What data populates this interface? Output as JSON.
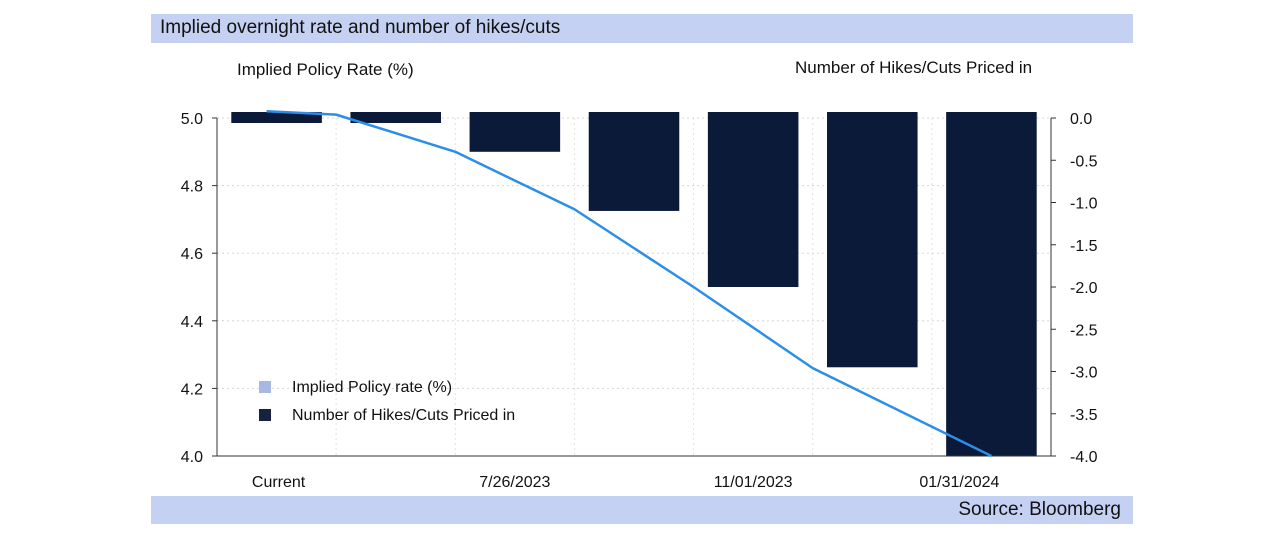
{
  "header": {
    "title": "Implied overnight rate and number of hikes/cuts"
  },
  "footer": {
    "source": "Source: Bloomberg"
  },
  "chart_data": {
    "type": "bar+line",
    "title": "Implied overnight rate and number of hikes/cuts",
    "left_axis_label": "Implied Policy Rate (%)",
    "right_axis_label": "Number of Hikes/Cuts Priced in",
    "categories": [
      "Current",
      "",
      "7/26/2023",
      "",
      "11/01/2023",
      "",
      "01/31/2024"
    ],
    "x_tick_labels": [
      "Current",
      "7/26/2023",
      "11/01/2023",
      "01/31/2024"
    ],
    "left_ylim": [
      4.0,
      5.0
    ],
    "left_ticks": [
      "5.0",
      "4.8",
      "4.6",
      "4.4",
      "4.2",
      "4.0"
    ],
    "right_ylim": [
      -4.0,
      0.0
    ],
    "right_ticks": [
      "0.0",
      "-0.5",
      "-1.0",
      "-1.5",
      "-2.0",
      "-2.5",
      "-3.0",
      "-3.5",
      "-4.0"
    ],
    "grid": true,
    "legend_position": "bottom-left",
    "series": [
      {
        "name": "Implied Policy rate (%)",
        "type": "line",
        "axis": "left",
        "color": "#2b8ee8",
        "values": [
          5.02,
          5.01,
          4.9,
          4.73,
          4.5,
          4.26,
          4.0
        ]
      },
      {
        "name": "Number of Hikes/Cuts Priced in",
        "type": "bar",
        "axis": "right",
        "color": "#0c1a3a",
        "values": [
          0.0,
          0.0,
          -0.4,
          -1.1,
          -2.0,
          -2.95,
          -4.0
        ]
      }
    ],
    "legend": [
      {
        "label": "Implied Policy rate (%)",
        "color": "#a9b8e3"
      },
      {
        "label": "Number of Hikes/Cuts Priced in",
        "color": "#16233f"
      }
    ]
  }
}
